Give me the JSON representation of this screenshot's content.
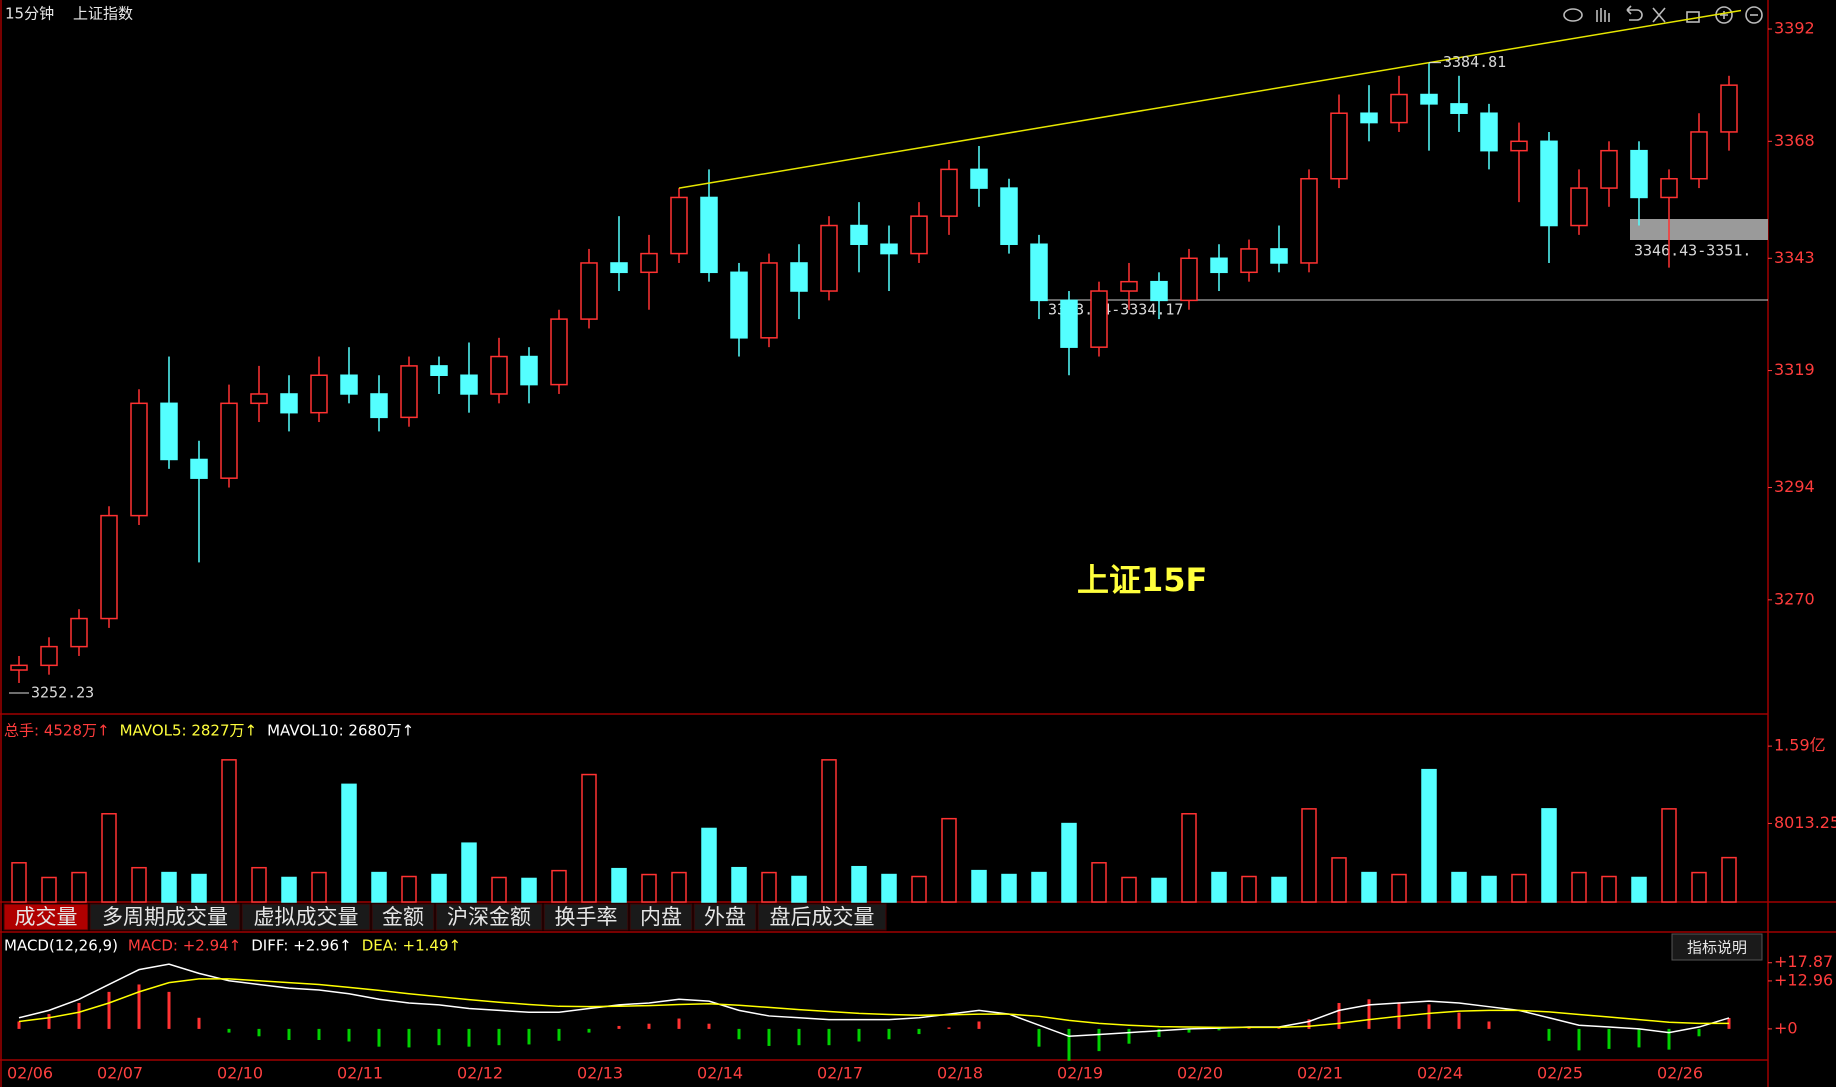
{
  "header": {
    "period": "15分钟",
    "symbol": "上证指数"
  },
  "watermark": "上证15F",
  "volume_header": [
    "总手: 4528万↑",
    "MAVOL5: 2827万↑",
    "MAVOL10: 2680万↑"
  ],
  "macd_header": [
    "MACD(12,26,9)",
    "MACD: +2.94↑",
    "DIFF: +2.96↑",
    "DEA: +1.49↑"
  ],
  "tabs": [
    "成交量",
    "多周期成交量",
    "虚拟成交量",
    "金额",
    "沪深金额",
    "换手率",
    "内盘",
    "外盘",
    "盘后成交量"
  ],
  "button": "指标说明",
  "annotations": [
    "3333.94-3334.17",
    "3346.43-3351."
  ],
  "chart_data": [
    {
      "type": "candlestick",
      "categories": [
        "02/06",
        null,
        null,
        "02/07",
        null,
        null,
        null,
        "02/10",
        null,
        null,
        null,
        "02/11",
        null,
        null,
        null,
        "02/12",
        null,
        null,
        null,
        "02/13",
        null,
        null,
        null,
        "02/14",
        null,
        null,
        null,
        "02/17",
        null,
        null,
        null,
        "02/18",
        null,
        null,
        null,
        "02/19",
        null,
        null,
        null,
        "02/20",
        null,
        null,
        null,
        "02/21",
        null,
        null,
        null,
        "02/24",
        null,
        null,
        null,
        "02/25",
        null,
        null,
        null,
        "02/26",
        null,
        null
      ],
      "open": [
        3255,
        3256,
        3260,
        3266,
        3288,
        3312,
        3300,
        3296,
        3312,
        3314,
        3310,
        3318,
        3314,
        3309,
        3320,
        3318,
        3314,
        3322,
        3316,
        3330,
        3342,
        3340,
        3344,
        3356,
        3340,
        3326,
        3342,
        3336,
        3350,
        3346,
        3344,
        3352,
        3362,
        3358,
        3346,
        3334,
        3324,
        3336,
        3338,
        3334,
        3343,
        3340,
        3345,
        3342,
        3360,
        3374,
        3372,
        3378,
        3376,
        3374,
        3366,
        3368,
        3350,
        3358,
        3366,
        3356,
        3360,
        3370
      ],
      "high": [
        3258,
        3262,
        3268,
        3290,
        3315,
        3322,
        3304,
        3316,
        3320,
        3318,
        3322,
        3324,
        3318,
        3322,
        3322,
        3325,
        3326,
        3324,
        3332,
        3345,
        3352,
        3348,
        3358,
        3362,
        3342,
        3344,
        3346,
        3352,
        3355,
        3350,
        3355,
        3364,
        3367,
        3360,
        3348,
        3336,
        3338,
        3342,
        3340,
        3345,
        3346,
        3347,
        3350,
        3362,
        3378,
        3380,
        3382,
        3384.81,
        3382,
        3376,
        3372,
        3370,
        3362,
        3368,
        3368,
        3362,
        3374,
        3382
      ],
      "low": [
        3252.23,
        3254,
        3258,
        3264,
        3286,
        3298,
        3278,
        3294,
        3308,
        3306,
        3308,
        3312,
        3306,
        3307,
        3314,
        3310,
        3312,
        3312,
        3314,
        3328,
        3336,
        3332,
        3342,
        3338,
        3322,
        3324,
        3330,
        3334,
        3340,
        3336,
        3342,
        3348,
        3354,
        3344,
        3330,
        3318,
        3322,
        3332,
        3330,
        3332,
        3336,
        3338,
        3340,
        3340,
        3358,
        3368,
        3370,
        3366,
        3370,
        3362,
        3355,
        3342,
        3348,
        3354,
        3350,
        3341,
        3358,
        3366
      ],
      "close": [
        3256,
        3260,
        3266,
        3288,
        3312,
        3300,
        3296,
        3312,
        3314,
        3310,
        3318,
        3314,
        3309,
        3320,
        3318,
        3314,
        3322,
        3316,
        3330,
        3342,
        3340,
        3344,
        3356,
        3340,
        3326,
        3342,
        3336,
        3350,
        3346,
        3344,
        3352,
        3362,
        3358,
        3346,
        3334,
        3324,
        3336,
        3338,
        3334,
        3343,
        3340,
        3345,
        3342,
        3360,
        3374,
        3372,
        3378,
        3376,
        3374,
        3366,
        3368,
        3350,
        3358,
        3366,
        3356,
        3360,
        3370,
        3380
      ],
      "up_color": "#ff3232",
      "down_color": "#54ffff",
      "trendline_color": "#e6e600",
      "ylim": [
        3245.6,
        3398.2
      ],
      "yticks": [
        3270,
        3294,
        3319,
        3343,
        3368,
        3392
      ],
      "grid": false
    },
    {
      "type": "bar",
      "values": [
        4000,
        2500,
        3000,
        9000,
        3500,
        3000,
        2800,
        14500,
        3500,
        2500,
        3000,
        12000,
        3000,
        2600,
        2800,
        6000,
        2500,
        2400,
        3200,
        13000,
        3400,
        2800,
        3000,
        7500,
        3500,
        3000,
        2600,
        14500,
        3600,
        2800,
        2600,
        8500,
        3200,
        2800,
        3000,
        8000,
        4000,
        2500,
        2400,
        9000,
        3000,
        2600,
        2500,
        9500,
        4500,
        3000,
        2800,
        13500,
        3000,
        2600,
        2800,
        9500,
        3000,
        2600,
        2500,
        9500,
        3000,
        4528
      ],
      "ylim": [
        0,
        18870
      ],
      "yticks": [
        {
          "value": 15900,
          "label": "1.59亿"
        },
        8013.25
      ],
      "grid": false
    },
    {
      "type": "macd",
      "series": [
        {
          "color": "#ffffff",
          "values": [
            3,
            5,
            8,
            12,
            16,
            17.5,
            15,
            13,
            12,
            11,
            10.5,
            9.5,
            8,
            7,
            6.5,
            5.5,
            5,
            4.5,
            4.5,
            5.5,
            6.5,
            7,
            8,
            7.5,
            5,
            3.5,
            3,
            2.5,
            2.5,
            2.5,
            3,
            4,
            5,
            4,
            1,
            -2,
            -1.5,
            -1,
            -0.5,
            0,
            0.2,
            0.5,
            0.5,
            2,
            5,
            6.5,
            7,
            7.5,
            7,
            6,
            5,
            3,
            1,
            0.5,
            0,
            -1,
            0.5,
            2.96
          ]
        },
        {
          "color": "#ffff00",
          "values": [
            2,
            3,
            4.5,
            7,
            10,
            12.5,
            13.5,
            13.5,
            13,
            12.5,
            12,
            11.2,
            10.4,
            9.5,
            8.7,
            7.9,
            7.2,
            6.6,
            6.1,
            6,
            6.1,
            6.3,
            6.6,
            6.8,
            6.4,
            5.8,
            5.2,
            4.7,
            4.2,
            3.9,
            3.7,
            3.8,
            4,
            4,
            3.4,
            2.3,
            1.5,
            1,
            0.6,
            0.5,
            0.4,
            0.4,
            0.4,
            0.7,
            1.5,
            2.5,
            3.4,
            4.2,
            4.8,
            5,
            5,
            4.6,
            3.9,
            3.2,
            2.5,
            1.8,
            1.5,
            1.49
          ]
        }
      ],
      "macd": [
        2,
        4,
        7,
        10,
        12,
        10,
        3,
        -1,
        -2,
        -3,
        -3,
        -3.4,
        -4.8,
        -5,
        -4.4,
        -4.8,
        -4.4,
        -4.2,
        -3.2,
        -1,
        0.8,
        1.4,
        2.8,
        1.4,
        -2.8,
        -4.6,
        -4.4,
        -4.4,
        -3.4,
        -2.8,
        -1.4,
        0.4,
        2,
        0,
        -4.8,
        -8.6,
        -6,
        -4,
        -2.2,
        -1,
        -0.4,
        0.2,
        0.2,
        2.6,
        7,
        8,
        7.2,
        6.6,
        4.4,
        2,
        0,
        -3.2,
        -5.8,
        -5.4,
        -5,
        -5.6,
        -2,
        2.94
      ],
      "pos_color": "#ff3232",
      "neg_color": "#00d000",
      "ylim": [
        -8.4,
        25.9
      ],
      "yticks": [
        {
          "value": 17.87,
          "label": "+17.87"
        },
        {
          "value": 12.96,
          "label": "+12.96"
        },
        {
          "value": 0,
          "label": "+0"
        }
      ]
    }
  ]
}
